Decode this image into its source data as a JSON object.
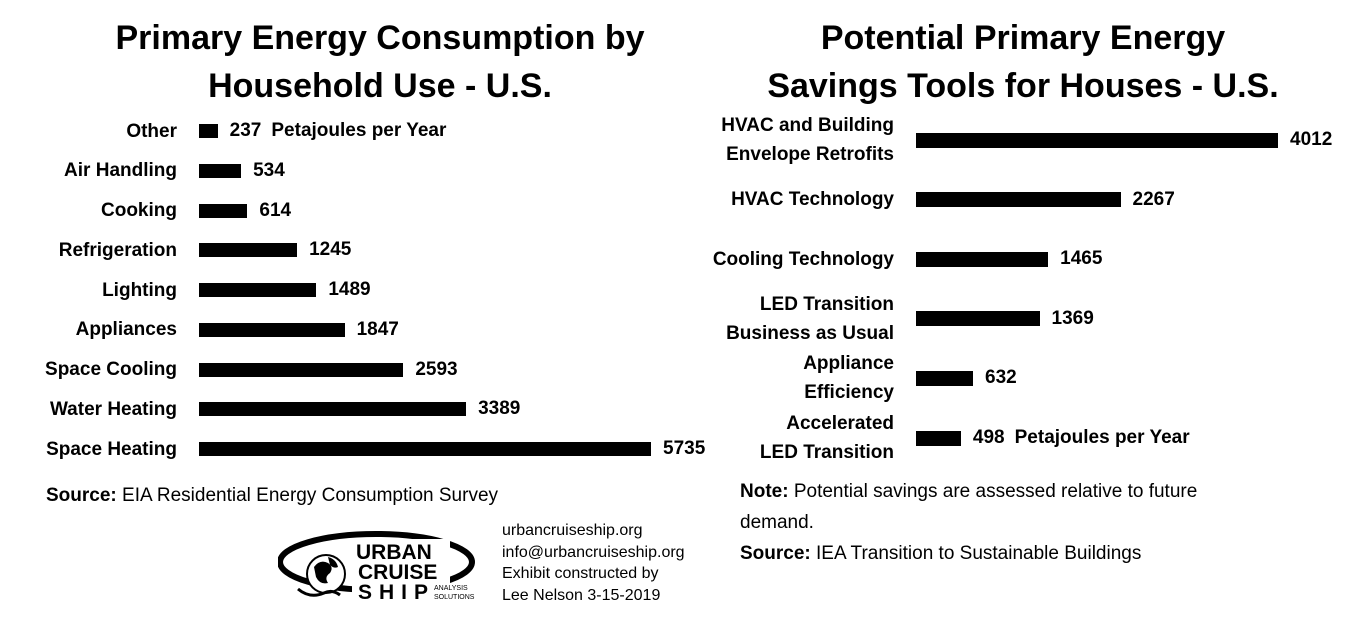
{
  "left_chart": {
    "title_line1": "Primary Energy Consumption by",
    "title_line2": "Household Use - U.S.",
    "unit_label": "Petajoules per Year",
    "source_label": "Source:",
    "source_text": "EIA Residential Energy Consumption Survey"
  },
  "right_chart": {
    "title_line1": "Potential Primary Energy",
    "title_line2": "Savings Tools for Houses - U.S.",
    "unit_label": "Petajoules per Year",
    "note_label": "Note:",
    "note_line1": "Potential savings are assessed relative to future",
    "note_line2": "demand.",
    "source_label": "Source:",
    "source_text": "IEA Transition to Sustainable Buildings"
  },
  "chart_data": [
    {
      "type": "bar",
      "orientation": "horizontal",
      "title": "Primary Energy Consumption by Household Use - U.S.",
      "categories": [
        [
          "Other"
        ],
        [
          "Air Handling"
        ],
        [
          "Cooking"
        ],
        [
          "Refrigeration"
        ],
        [
          "Lighting"
        ],
        [
          "Appliances"
        ],
        [
          "Space Cooling"
        ],
        [
          "Water Heating"
        ],
        [
          "Space Heating"
        ]
      ],
      "values": [
        237,
        534,
        614,
        1245,
        1489,
        1847,
        2593,
        3389,
        5735
      ],
      "value_labels": [
        "237",
        "534",
        "614",
        "1245",
        "1489",
        "1847",
        "2593",
        "3389",
        "5735"
      ],
      "grid": false,
      "axes_visible": false
    },
    {
      "type": "bar",
      "orientation": "horizontal",
      "title": "Potential Primary Energy Savings Tools for Houses - U.S.",
      "categories": [
        [
          "HVAC and Building",
          "Envelope Retrofits"
        ],
        [
          "HVAC Technology"
        ],
        [
          "Cooling Technology"
        ],
        [
          "LED Transition",
          "Business as Usual"
        ],
        [
          "Appliance",
          "Efficiency"
        ],
        [
          "Accelerated",
          "LED Transition"
        ]
      ],
      "values": [
        4012,
        2267,
        1465,
        1369,
        632,
        498
      ],
      "value_labels": [
        "4012",
        "2267",
        "1465",
        "1369",
        "632",
        "498"
      ],
      "grid": false,
      "axes_visible": false
    }
  ],
  "footer": {
    "website": "urbancruiseship.org",
    "email": "info@urbancruiseship.org",
    "credit_line1": "Exhibit constructed by",
    "credit_line2": "Lee Nelson 3-15-2019",
    "logo_text": [
      "URBAN",
      "CRUISE",
      "SHIP",
      "ANALYSIS",
      "SOLUTIONS"
    ]
  }
}
